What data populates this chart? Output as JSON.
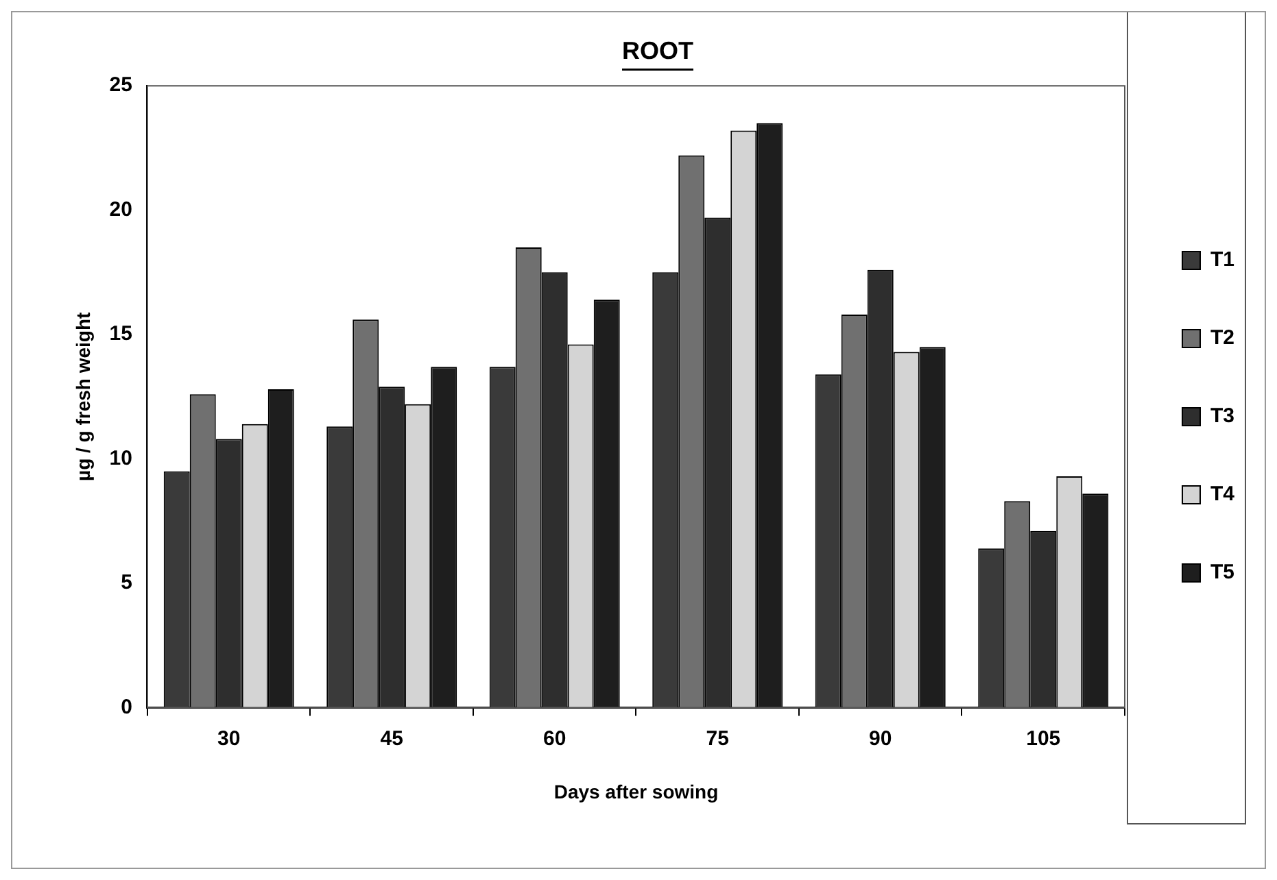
{
  "chart_data": {
    "type": "bar",
    "title": "ROOT",
    "xlabel": "Days after sowing",
    "ylabel": "µg / g fresh weight",
    "categories": [
      "30",
      "45",
      "60",
      "75",
      "90",
      "105"
    ],
    "series": [
      {
        "name": "T1",
        "color": "#3a3a3a",
        "values": [
          9.5,
          11.3,
          13.7,
          17.5,
          13.4,
          6.4
        ]
      },
      {
        "name": "T2",
        "color": "#707070",
        "values": [
          12.6,
          15.6,
          18.5,
          22.2,
          15.8,
          8.3
        ]
      },
      {
        "name": "T3",
        "color": "#2e2e2e",
        "values": [
          10.8,
          12.9,
          17.5,
          19.7,
          17.6,
          7.1
        ]
      },
      {
        "name": "T4",
        "color": "#d4d4d4",
        "values": [
          11.4,
          12.2,
          14.6,
          23.2,
          14.3,
          9.3
        ]
      },
      {
        "name": "T5",
        "color": "#1e1e1e",
        "values": [
          12.8,
          13.7,
          16.4,
          23.5,
          14.5,
          8.6
        ]
      }
    ],
    "ylim": [
      0,
      25
    ],
    "yticks": [
      0,
      5,
      10,
      15,
      20,
      25
    ],
    "grid": false,
    "legend": "right"
  }
}
